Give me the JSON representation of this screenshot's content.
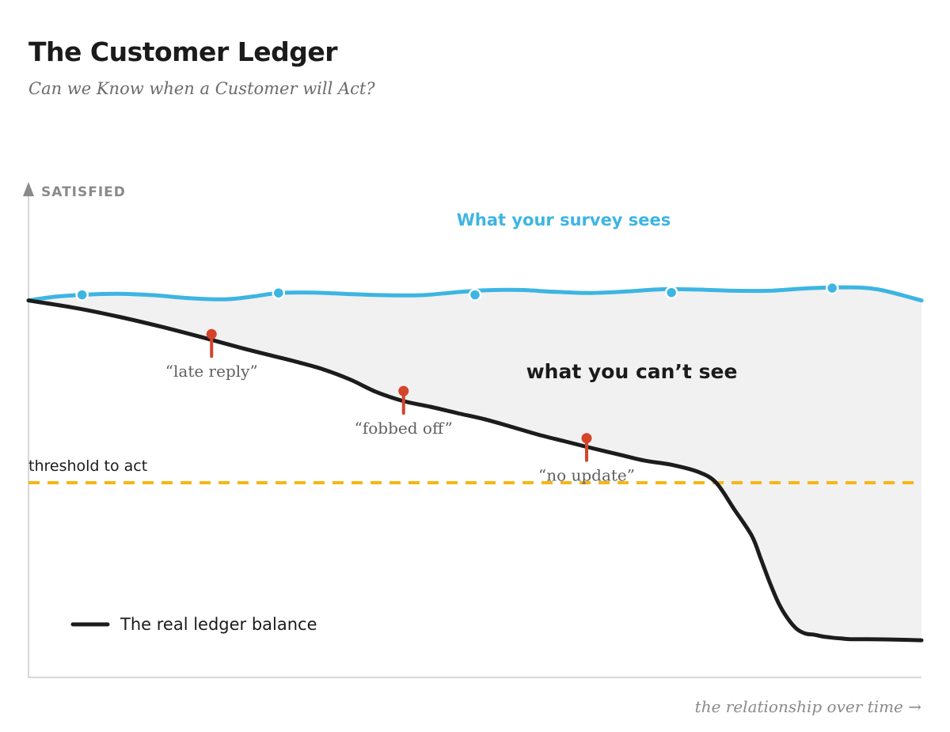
{
  "title": "The Customer Ledger",
  "subtitle": "Can we Know when a Customer will Act?",
  "chart_data": {
    "type": "line",
    "ylabel": "SATISFIED",
    "xlabel": "the relationship over time →",
    "xlim": [
      0,
      100
    ],
    "ylim": [
      0,
      100
    ],
    "grid": false,
    "series": [
      {
        "name": "What your survey sees",
        "color": "#3db5e3",
        "x": [
          0,
          3,
          6,
          10,
          14,
          18,
          22,
          25,
          28,
          32,
          36,
          40,
          44,
          47.5,
          51,
          55,
          59,
          63,
          67,
          71,
          75,
          79,
          83,
          87,
          91,
          95,
          100
        ],
        "y": [
          89.5,
          90.5,
          91,
          91.3,
          90.9,
          90.1,
          89.8,
          90.5,
          91.5,
          91.6,
          91.2,
          90.9,
          90.9,
          91.6,
          92.2,
          92.3,
          91.8,
          91.5,
          91.9,
          92.5,
          92.4,
          92.1,
          92.1,
          92.7,
          93,
          92.5,
          89.5
        ],
        "markers_x": [
          6,
          28,
          50,
          72,
          90
        ],
        "markers_y": [
          91,
          91.5,
          91,
          91.6,
          92.8
        ]
      },
      {
        "name": "The real ledger balance",
        "color": "#1c1c1c",
        "x": [
          0,
          5,
          10,
          15,
          20,
          24,
          27,
          30,
          33,
          36,
          39,
          42,
          45,
          48,
          51,
          54,
          57,
          60,
          63,
          66,
          69,
          72,
          75,
          77,
          79,
          81,
          82,
          83,
          84,
          85,
          86,
          87,
          88,
          89,
          90,
          91,
          92,
          94,
          97,
          100
        ],
        "y": [
          89.5,
          87.6,
          85.2,
          82.4,
          79.3,
          76.7,
          74.9,
          73.1,
          71.1,
          68.4,
          65,
          62.6,
          61.1,
          59.4,
          57.8,
          55.8,
          53.7,
          51.9,
          50.1,
          48.4,
          46.7,
          45.6,
          43.7,
          40.8,
          33.8,
          26.6,
          20.5,
          14.2,
          8.6,
          4.6,
          1.8,
          0.5,
          0.2,
          -0.3,
          -0.6,
          -0.8,
          -1,
          -1,
          -1.1,
          -1.3
        ]
      }
    ],
    "annotations": [
      {
        "label": "“late reply”",
        "x": 20.5,
        "y": 80.5,
        "color": "#d6432b"
      },
      {
        "label": "“fobbed off”",
        "x": 42,
        "y": 65.3,
        "color": "#d6432b"
      },
      {
        "label": "“no update”",
        "x": 62.5,
        "y": 52.7,
        "color": "#d6432b"
      }
    ],
    "threshold": {
      "label": "threshold to act",
      "y": 40.8,
      "color": "#f5b716"
    },
    "gap_label": "what you can’t see",
    "gap_fill": "#f1f1f1",
    "axis_color": "#d8d8d8",
    "legend": "bottom-left"
  }
}
